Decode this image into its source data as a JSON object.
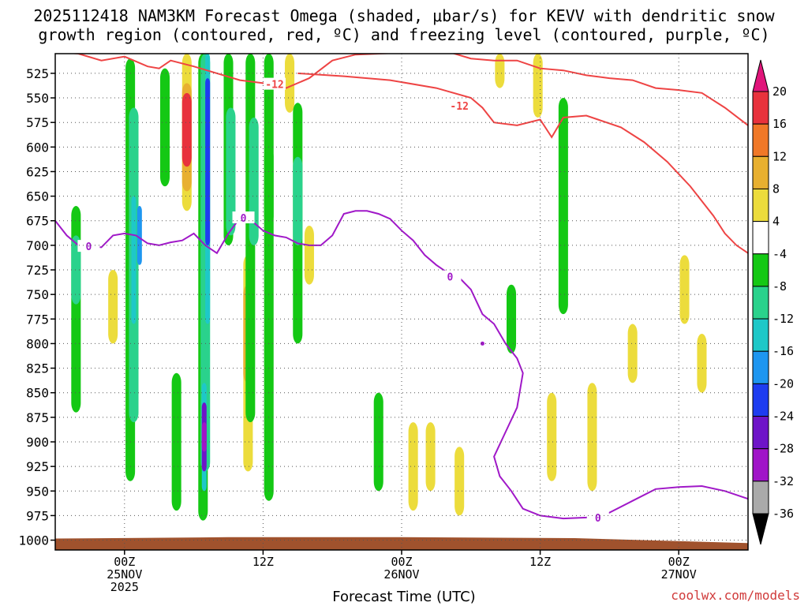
{
  "chart_data": {
    "type": "heatmap",
    "title_line1": "2025112418 NAM3KM Forecast Omega (shaded, μbar/s) for KEVV with dendritic snow",
    "title_line2": "growth region (contoured, red, ºC) and freezing level (contoured, purple, ºC)",
    "xlabel": "Forecast Time (UTC)",
    "ylabel": "Pressure (mb)",
    "credit": "coolwx.com/models",
    "x_range_hours": [
      0,
      60
    ],
    "y_range_mb": [
      505,
      1010
    ],
    "y_ticks": [
      525,
      550,
      575,
      600,
      625,
      650,
      675,
      700,
      725,
      750,
      775,
      800,
      825,
      850,
      875,
      900,
      925,
      950,
      975,
      1000
    ],
    "x_ticks": [
      {
        "hour": 6,
        "lines": [
          "00Z",
          "25NOV",
          "2025"
        ]
      },
      {
        "hour": 18,
        "lines": [
          "12Z"
        ]
      },
      {
        "hour": 30,
        "lines": [
          "00Z",
          "26NOV"
        ]
      },
      {
        "hour": 42,
        "lines": [
          "12Z"
        ]
      },
      {
        "hour": 54,
        "lines": [
          "00Z",
          "27NOV"
        ]
      }
    ],
    "colorbar": {
      "labels": [
        "20",
        "16",
        "12",
        "8",
        "4",
        "-4",
        "-8",
        "-12",
        "-16",
        "-20",
        "-24",
        "-28",
        "-32",
        "-36"
      ],
      "bands": [
        {
          "from": 16,
          "to": 20,
          "color": "#e8323c"
        },
        {
          "from": 12,
          "to": 16,
          "color": "#f07828"
        },
        {
          "from": 8,
          "to": 12,
          "color": "#e8b030"
        },
        {
          "from": 4,
          "to": 8,
          "color": "#ecdc3c"
        },
        {
          "from": -4,
          "to": 4,
          "color": "#ffffff"
        },
        {
          "from": -8,
          "to": -4,
          "color": "#14c814"
        },
        {
          "from": -12,
          "to": -8,
          "color": "#2ad28c"
        },
        {
          "from": -16,
          "to": -12,
          "color": "#1ec8c8"
        },
        {
          "from": -20,
          "to": -16,
          "color": "#1e96f0"
        },
        {
          "from": -24,
          "to": -20,
          "color": "#1e3cf0"
        },
        {
          "from": -28,
          "to": -24,
          "color": "#6e14c8"
        },
        {
          "from": -32,
          "to": -28,
          "color": "#a014c8"
        },
        {
          "from": -36,
          "to": -32,
          "color": "#aaaaaa"
        }
      ],
      "top_arrow_color": "#e0157a",
      "bottom_arrow_color": "#000000"
    },
    "shaded_cells": [
      {
        "t": 1.8,
        "p0": 660,
        "p1": 870,
        "v": -6
      },
      {
        "t": 1.8,
        "p0": 690,
        "p1": 760,
        "v": -10
      },
      {
        "t": 5.0,
        "p0": 725,
        "p1": 800,
        "v": 6
      },
      {
        "t": 6.5,
        "p0": 510,
        "p1": 940,
        "v": -6
      },
      {
        "t": 6.8,
        "p0": 560,
        "p1": 880,
        "v": -10
      },
      {
        "t": 6.8,
        "p0": 650,
        "p1": 780,
        "v": -14
      },
      {
        "t": 7.3,
        "p0": 660,
        "p1": 720,
        "v": -18
      },
      {
        "t": 9.5,
        "p0": 520,
        "p1": 640,
        "v": -7
      },
      {
        "t": 10.5,
        "p0": 830,
        "p1": 970,
        "v": -6
      },
      {
        "t": 11.4,
        "p0": 505,
        "p1": 665,
        "v": 5
      },
      {
        "t": 11.4,
        "p0": 535,
        "p1": 645,
        "v": 10
      },
      {
        "t": 11.4,
        "p0": 545,
        "p1": 620,
        "v": 18
      },
      {
        "t": 12.8,
        "p0": 505,
        "p1": 980,
        "v": -6
      },
      {
        "t": 13.0,
        "p0": 505,
        "p1": 930,
        "v": -10
      },
      {
        "t": 13.2,
        "p0": 505,
        "p1": 780,
        "v": -15
      },
      {
        "t": 13.2,
        "p0": 530,
        "p1": 700,
        "v": -22
      },
      {
        "t": 12.9,
        "p0": 840,
        "p1": 950,
        "v": -14
      },
      {
        "t": 12.9,
        "p0": 860,
        "p1": 930,
        "v": -26
      },
      {
        "t": 12.9,
        "p0": 880,
        "p1": 910,
        "v": -30
      },
      {
        "t": 15.0,
        "p0": 505,
        "p1": 700,
        "v": -7
      },
      {
        "t": 15.2,
        "p0": 560,
        "p1": 690,
        "v": -10
      },
      {
        "t": 16.7,
        "p0": 710,
        "p1": 930,
        "v": 5
      },
      {
        "t": 16.7,
        "p0": 740,
        "p1": 840,
        "v": 9
      },
      {
        "t": 16.9,
        "p0": 505,
        "p1": 880,
        "v": -6
      },
      {
        "t": 17.2,
        "p0": 570,
        "p1": 700,
        "v": -10
      },
      {
        "t": 18.5,
        "p0": 505,
        "p1": 680,
        "v": -7
      },
      {
        "t": 18.5,
        "p0": 600,
        "p1": 960,
        "v": -6
      },
      {
        "t": 20.3,
        "p0": 505,
        "p1": 565,
        "v": 5
      },
      {
        "t": 21.0,
        "p0": 555,
        "p1": 800,
        "v": -7
      },
      {
        "t": 21.0,
        "p0": 610,
        "p1": 700,
        "v": -10
      },
      {
        "t": 22.0,
        "p0": 680,
        "p1": 740,
        "v": 5
      },
      {
        "t": 28.0,
        "p0": 850,
        "p1": 950,
        "v": -6
      },
      {
        "t": 31.0,
        "p0": 880,
        "p1": 970,
        "v": 5
      },
      {
        "t": 32.5,
        "p0": 880,
        "p1": 950,
        "v": 5
      },
      {
        "t": 35.0,
        "p0": 905,
        "p1": 975,
        "v": 6
      },
      {
        "t": 38.5,
        "p0": 505,
        "p1": 540,
        "v": 5
      },
      {
        "t": 39.5,
        "p0": 740,
        "p1": 810,
        "v": -6
      },
      {
        "t": 41.8,
        "p0": 505,
        "p1": 570,
        "v": 5
      },
      {
        "t": 43.0,
        "p0": 850,
        "p1": 940,
        "v": 5
      },
      {
        "t": 44.0,
        "p0": 550,
        "p1": 770,
        "v": -6
      },
      {
        "t": 46.5,
        "p0": 840,
        "p1": 950,
        "v": 5
      },
      {
        "t": 50.0,
        "p0": 780,
        "p1": 840,
        "v": 5
      },
      {
        "t": 54.5,
        "p0": 710,
        "p1": 780,
        "v": 5
      },
      {
        "t": 56.0,
        "p0": 790,
        "p1": 850,
        "v": 5
      }
    ],
    "dgz_contours": {
      "color": "#ee4444",
      "label": "-12",
      "upper": [
        [
          0,
          503
        ],
        [
          2,
          505
        ],
        [
          4,
          512
        ],
        [
          6,
          508
        ],
        [
          8,
          518
        ],
        [
          9,
          520
        ],
        [
          10,
          512
        ],
        [
          12,
          518
        ],
        [
          14,
          525
        ],
        [
          16,
          532
        ],
        [
          18,
          535
        ],
        [
          20,
          540
        ],
        [
          22,
          530
        ],
        [
          24,
          512
        ],
        [
          26,
          506
        ],
        [
          30,
          504
        ],
        [
          34,
          503
        ],
        [
          36,
          510
        ],
        [
          38,
          512
        ],
        [
          40,
          512
        ],
        [
          42,
          520
        ],
        [
          44,
          522
        ],
        [
          46,
          527
        ],
        [
          48,
          530
        ],
        [
          50,
          532
        ],
        [
          52,
          540
        ],
        [
          54,
          542
        ],
        [
          56,
          545
        ],
        [
          58,
          560
        ],
        [
          60,
          578
        ]
      ],
      "lower": [
        [
          21,
          525
        ],
        [
          25,
          528
        ],
        [
          29,
          532
        ],
        [
          33,
          540
        ],
        [
          36,
          550
        ],
        [
          37,
          560
        ],
        [
          38,
          575
        ],
        [
          40,
          578
        ],
        [
          42,
          572
        ],
        [
          43,
          590
        ],
        [
          44,
          570
        ],
        [
          46,
          568
        ],
        [
          47,
          572
        ],
        [
          49,
          580
        ],
        [
          51,
          595
        ],
        [
          53,
          615
        ],
        [
          55,
          640
        ],
        [
          57,
          670
        ],
        [
          58,
          688
        ],
        [
          59,
          700
        ],
        [
          60,
          708
        ]
      ]
    },
    "freezing_level": {
      "color": "#a018c8",
      "label": "0",
      "line": [
        [
          0,
          675
        ],
        [
          1,
          690
        ],
        [
          2,
          700
        ],
        [
          4,
          702
        ],
        [
          5,
          690
        ],
        [
          6,
          688
        ],
        [
          7,
          690
        ],
        [
          8,
          698
        ],
        [
          9,
          700
        ],
        [
          10,
          697
        ],
        [
          11,
          695
        ],
        [
          12,
          688
        ],
        [
          13,
          700
        ],
        [
          14,
          708
        ],
        [
          15,
          688
        ],
        [
          16,
          672
        ],
        [
          17,
          675
        ],
        [
          18,
          685
        ],
        [
          19,
          690
        ],
        [
          20,
          692
        ],
        [
          21,
          698
        ],
        [
          22,
          700
        ],
        [
          23,
          700
        ],
        [
          24,
          690
        ],
        [
          25,
          668
        ],
        [
          26,
          665
        ],
        [
          27,
          665
        ],
        [
          28,
          668
        ],
        [
          29,
          673
        ],
        [
          30,
          685
        ],
        [
          31,
          695
        ],
        [
          32,
          710
        ],
        [
          33,
          720
        ],
        [
          34,
          728
        ],
        [
          35,
          733
        ],
        [
          36,
          745
        ],
        [
          37,
          770
        ],
        [
          38,
          780
        ],
        [
          39,
          800
        ],
        [
          40,
          815
        ],
        [
          40.5,
          830
        ],
        [
          40,
          865
        ],
        [
          39,
          890
        ],
        [
          38,
          915
        ],
        [
          38.5,
          935
        ],
        [
          39.5,
          950
        ],
        [
          40.5,
          968
        ],
        [
          42,
          975
        ],
        [
          44,
          978
        ],
        [
          46,
          977
        ],
        [
          48,
          972
        ],
        [
          50,
          960
        ],
        [
          52,
          948
        ],
        [
          54,
          946
        ],
        [
          56,
          945
        ],
        [
          58,
          950
        ],
        [
          60,
          958
        ]
      ],
      "dot": [
        37.0,
        800
      ]
    },
    "terrain_color": "#a0522d"
  }
}
